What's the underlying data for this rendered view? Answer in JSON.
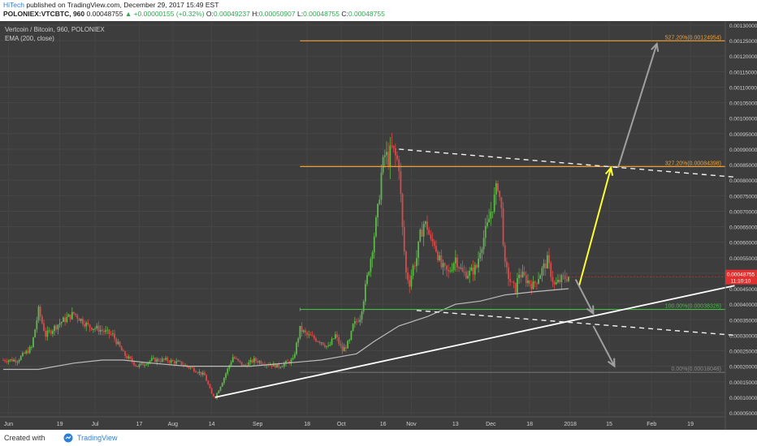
{
  "header": {
    "author": "HiTech",
    "published": " published on TradingView.com, December 29, 2017 15:49 EST",
    "symbol": "POLONIEX:VTCBTC, 960",
    "last": "0.00048755",
    "change": "▲ +0.00000155 (+0.32%)",
    "o_label": "O:",
    "o": "0.00049237",
    "h_label": "H:",
    "h": "0.00050907",
    "l_label": "L:",
    "l": "0.00048755",
    "c_label": "C:",
    "c": "0.00048755"
  },
  "legend": {
    "title": "Vertcoin / Bitcoin, 960, POLONIEX",
    "ema": "EMA (200, close)"
  },
  "footer": {
    "created": "Created with",
    "brand": "TradingView"
  },
  "colors": {
    "background": "#3d3d3d",
    "up": "#5db84a",
    "down": "#d94b4b",
    "ema": "#bdbdbd",
    "fib": "#f0a030",
    "support": "#41c041",
    "arrow_up": "#ffff33",
    "arrow_grey": "#a0a0a0",
    "price_tag": "#e03030"
  },
  "chart_data": {
    "type": "candlestick",
    "title": "Vertcoin / Bitcoin, 960, POLONIEX",
    "ylim": [
      5e-05,
      0.0013
    ],
    "y_ticks": [
      "0.00005000",
      "0.00010000",
      "0.00015000",
      "0.00020000",
      "0.00025000",
      "0.00030000",
      "0.00035000",
      "0.00040000",
      "0.00045000",
      "0.00050000",
      "0.00055000",
      "0.00060000",
      "0.00065000",
      "0.00070000",
      "0.00075000",
      "0.00080000",
      "0.00085000",
      "0.00090000",
      "0.00095000",
      "0.00100000",
      "0.00105000",
      "0.00110000",
      "0.00115000",
      "0.00120000",
      "0.00125000",
      "0.00130000"
    ],
    "x_ticks": [
      "Jun",
      "19",
      "Jul",
      "17",
      "Aug",
      "14",
      "Sep",
      "18",
      "Oct",
      "16",
      "Nov",
      "13",
      "Dec",
      "18",
      "2018",
      "15",
      "Feb",
      "19"
    ],
    "last_price": "0.00048755",
    "countdown": "11:10:10",
    "fib_levels": [
      {
        "label": "527.20%(0.00124954)",
        "value": 0.00124954
      },
      {
        "label": "327.20%(0.00084398)",
        "value": 0.00084398
      },
      {
        "label": "100.00%(0.00038326)",
        "value": 0.00038326
      },
      {
        "label": "0.00%(0.00018048)",
        "value": 0.00018048
      }
    ],
    "path": [
      [
        0.0,
        0.00022
      ],
      [
        4.0,
        0.00022
      ],
      [
        8.0,
        0.00026
      ],
      [
        10.0,
        0.00038
      ],
      [
        12.0,
        0.0003
      ],
      [
        16.0,
        0.00034
      ],
      [
        20.0,
        0.00037
      ],
      [
        24.0,
        0.00033
      ],
      [
        27.0,
        0.00032
      ],
      [
        31.0,
        0.0003
      ],
      [
        34.0,
        0.00024
      ],
      [
        38.0,
        0.0002
      ],
      [
        42.0,
        0.00022
      ],
      [
        46.0,
        0.00022
      ],
      [
        50.0,
        0.00021
      ],
      [
        54.0,
        0.00019
      ],
      [
        57.0,
        0.00017
      ],
      [
        59.0,
        0.00011
      ],
      [
        60.0,
        0.0001
      ],
      [
        62.0,
        0.00015
      ],
      [
        65.0,
        0.00023
      ],
      [
        68.0,
        0.0002
      ],
      [
        71.0,
        0.00022
      ],
      [
        74.0,
        0.00021
      ],
      [
        78.0,
        0.0002
      ],
      [
        82.0,
        0.00022
      ],
      [
        84.0,
        0.00032
      ],
      [
        86.0,
        0.0003
      ],
      [
        88.0,
        0.00029
      ],
      [
        90.0,
        0.00028
      ],
      [
        92.0,
        0.00026
      ],
      [
        94.0,
        0.0003
      ],
      [
        96.0,
        0.00025
      ],
      [
        98.0,
        0.00028
      ],
      [
        99.0,
        0.00033
      ],
      [
        101.0,
        0.00036
      ],
      [
        102.0,
        0.00042
      ],
      [
        104.0,
        0.00055
      ],
      [
        106.0,
        0.0007
      ],
      [
        107.0,
        0.00082
      ],
      [
        108.0,
        0.00088
      ],
      [
        109.0,
        0.00087
      ],
      [
        110.0,
        0.0009
      ],
      [
        112.0,
        0.00085
      ],
      [
        113.0,
        0.00064
      ],
      [
        114.0,
        0.0005
      ],
      [
        115.0,
        0.00047
      ],
      [
        116.0,
        0.00052
      ],
      [
        117.0,
        0.00055
      ],
      [
        118.0,
        0.00062
      ],
      [
        119.0,
        0.00066
      ],
      [
        120.0,
        0.00065
      ],
      [
        121.0,
        0.0006
      ],
      [
        122.0,
        0.0006
      ],
      [
        124.0,
        0.00052
      ],
      [
        126.0,
        0.0005
      ],
      [
        128.0,
        0.00055
      ],
      [
        130.0,
        0.0005
      ],
      [
        132.0,
        0.0005
      ],
      [
        134.0,
        0.00052
      ],
      [
        135.0,
        0.00058
      ],
      [
        137.0,
        0.00065
      ],
      [
        138.0,
        0.0007
      ],
      [
        139.0,
        0.00074
      ],
      [
        140.0,
        0.00079
      ],
      [
        141.0,
        0.0007
      ],
      [
        142.0,
        0.00052
      ],
      [
        144.0,
        0.00046
      ],
      [
        145.0,
        0.00045
      ],
      [
        146.0,
        0.0005
      ],
      [
        148.0,
        0.00048
      ],
      [
        150.0,
        0.00046
      ],
      [
        152.0,
        0.0005
      ],
      [
        154.0,
        0.00054
      ],
      [
        156.0,
        0.00046
      ],
      [
        158.0,
        0.00048
      ],
      [
        160.0,
        0.00049
      ]
    ],
    "ema": [
      [
        0.0,
        0.00019
      ],
      [
        10.0,
        0.00019
      ],
      [
        20.0,
        0.00021
      ],
      [
        28.0,
        0.00022
      ],
      [
        34.0,
        0.00022
      ],
      [
        42.0,
        0.00021
      ],
      [
        52.0,
        0.0002
      ],
      [
        60.0,
        0.0002
      ],
      [
        70.0,
        0.0002
      ],
      [
        80.0,
        0.00021
      ],
      [
        90.0,
        0.00022
      ],
      [
        100.0,
        0.00024
      ],
      [
        105.0,
        0.00028
      ],
      [
        112.0,
        0.00033
      ],
      [
        120.0,
        0.00036
      ],
      [
        128.0,
        0.0004
      ],
      [
        135.0,
        0.00041
      ],
      [
        142.0,
        0.00043
      ],
      [
        150.0,
        0.00044
      ],
      [
        160.0,
        0.00045
      ]
    ],
    "trendlines": [
      {
        "name": "support",
        "from": [
          60.0,
          0.0001
        ],
        "to": [
          207.0,
          0.00046
        ]
      },
      {
        "name": "upper-channel",
        "from": [
          112.0,
          0.0009
        ],
        "to": [
          207.0,
          0.00081
        ]
      },
      {
        "name": "lower-channel",
        "from": [
          117.0,
          0.00038
        ],
        "to": [
          207.0,
          0.0003
        ]
      }
    ],
    "projections": [
      {
        "name": "target-up",
        "from": [
          163.0,
          0.00046
        ],
        "to": [
          172.0,
          0.00084
        ]
      },
      {
        "name": "target-high",
        "from": [
          174.0,
          0.00084
        ],
        "to": [
          185.0,
          0.00124
        ]
      },
      {
        "name": "bounce",
        "from": [
          162.0,
          0.00048
        ],
        "to": [
          167.0,
          0.00037
        ]
      },
      {
        "name": "breakdown",
        "from": [
          167.0,
          0.00033
        ],
        "to": [
          173.0,
          0.0002
        ]
      }
    ]
  }
}
